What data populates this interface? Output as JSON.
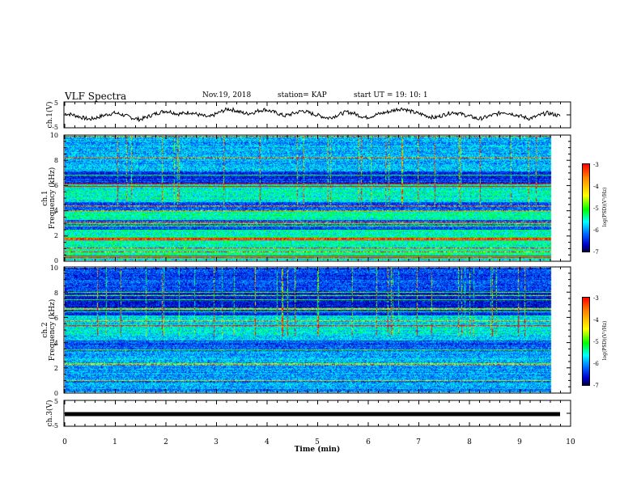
{
  "header": {
    "title": "VLF Spectra",
    "date": "Nov.19, 2018",
    "station": "station= KAP",
    "start": "start  UT =   19: 10: 1"
  },
  "colorbar": {
    "label": "log(PSD)(V²/Hz)",
    "ticks": [
      "-3",
      "-4",
      "-5",
      "-6",
      "-7"
    ],
    "colors": [
      "#ff0000",
      "#ffff00",
      "#00ff00",
      "#00ffff",
      "#0066ff",
      "#0000cc",
      "#000044"
    ]
  },
  "chart_data": [
    {
      "type": "line",
      "panel": "ch1-waveform",
      "ylabel": "ch.1(V)",
      "yticks": [
        "5",
        "-5"
      ],
      "ylim": [
        -5,
        5
      ],
      "xlim": [
        0,
        10
      ],
      "series": [
        {
          "values": [
            0.5,
            0.2,
            -0.5,
            -1.3,
            -1.8,
            -1.2,
            -0.4,
            0.3,
            0.8,
            0.2,
            -0.6,
            -1.4,
            -1.9,
            -1.0,
            0.0,
            0.9,
            1.6,
            1.2,
            0.4,
            0.6,
            1.1,
            0.3,
            -0.4,
            -1.0,
            0.2,
            1.4,
            2.4,
            2.0,
            1.1,
            0.5,
            0.9,
            1.8,
            2.2,
            1.4,
            0.6,
            -0.4,
            0.2,
            1.0,
            1.7,
            0.8,
            0.1,
            -0.6,
            -1.3,
            -0.6,
            0.4,
            1.2,
            0.7,
            -0.3,
            -1.1,
            -0.5,
            0.3,
            0.9,
            1.5,
            2.3,
            2.6,
            1.6,
            0.8,
            0.2,
            -0.6,
            -1.2,
            -0.4,
            0.5,
            1.1,
            0.5,
            -0.2,
            -0.9,
            -1.7,
            -1.1,
            -0.3,
            0.4,
            1.2,
            0.6,
            0.0,
            -0.8,
            -1.5,
            -0.9,
            0.1,
            0.8,
            0.2,
            -0.5
          ]
        }
      ]
    },
    {
      "type": "heatmap",
      "panel": "ch1-spectrogram",
      "ylabel": "ch.1\nFrequency (kHz)",
      "yticks": [
        "0",
        "2",
        "4",
        "6",
        "8",
        "10"
      ],
      "ylim": [
        0,
        10
      ],
      "xlim": [
        0,
        10
      ],
      "zlim": [
        -7,
        -3
      ]
    },
    {
      "type": "heatmap",
      "panel": "ch2-spectrogram",
      "ylabel": "ch.2\nFrequency (kHz)",
      "yticks": [
        "0",
        "2",
        "4",
        "6",
        "8",
        "10"
      ],
      "ylim": [
        0,
        10
      ],
      "xlim": [
        0,
        10
      ],
      "zlim": [
        -7,
        -3
      ]
    },
    {
      "type": "line",
      "panel": "ch3-waveform",
      "ylabel": "ch.3(V)",
      "yticks": [
        "5",
        "-5"
      ],
      "ylim": [
        -5,
        5
      ],
      "xlim": [
        0,
        10
      ],
      "series": [
        {
          "values": [
            0,
            0
          ]
        }
      ]
    }
  ],
  "xaxis": {
    "label": "Time (min)",
    "ticks": [
      "0",
      "1",
      "2",
      "3",
      "4",
      "5",
      "6",
      "7",
      "8",
      "9",
      "10"
    ]
  }
}
